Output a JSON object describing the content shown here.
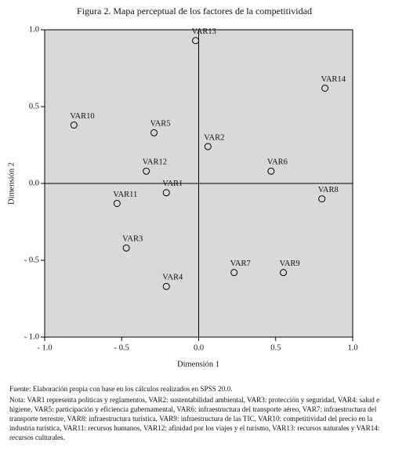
{
  "chart_data": {
    "type": "scatter",
    "title": "Figura 2. Mapa perceptual de los factores de la competitividad",
    "xlabel": "Dimensión 1",
    "ylabel": "Dimensión 2",
    "labels": [
      "VAR13",
      "VAR14",
      "VAR10",
      "VAR5",
      "VAR2",
      "VAR6",
      "VAR12",
      "VAR1",
      "VAR8",
      "VAR11",
      "VAR3",
      "VAR7",
      "VAR9",
      "VAR4"
    ],
    "x": [
      -0.02,
      0.82,
      -0.81,
      -0.29,
      0.06,
      0.47,
      -0.34,
      -0.21,
      0.8,
      -0.53,
      -0.47,
      0.23,
      0.55,
      -0.21
    ],
    "y": [
      0.93,
      0.62,
      0.38,
      0.33,
      0.24,
      0.08,
      0.08,
      -0.06,
      -0.1,
      -0.13,
      -0.42,
      -0.58,
      -0.58,
      -0.67
    ],
    "xlim": [
      -1.0,
      1.0
    ],
    "ylim": [
      -1.0,
      1.0
    ],
    "xticks": [
      {
        "value": -1.0,
        "label": "- 1.0"
      },
      {
        "value": -0.5,
        "label": "- 0.5"
      },
      {
        "value": 0.0,
        "label": "0.0"
      },
      {
        "value": 0.5,
        "label": "0.5"
      },
      {
        "value": 1.0,
        "label": "1.0"
      }
    ],
    "yticks": [
      {
        "value": -1.0,
        "label": "- 1.0"
      },
      {
        "value": -0.5,
        "label": "- 0.5"
      },
      {
        "value": 0.0,
        "label": "0.0"
      },
      {
        "value": 0.5,
        "label": "0.5"
      },
      {
        "value": 1.0,
        "label": "1.0"
      }
    ],
    "color": "#000000",
    "background": "#d9d9d9"
  },
  "source": "Fuente: Elaboración propia con base en los cálculos realizados en SPSS 20.0.",
  "note": "Nota: VAR1 representa políticas y reglamentos, VAR2: sustentabilidad ambiental, VAR3: protección y seguridad, VAR4: salud e higiene, VAR5: participación y eficiencia gubernamental, VAR6: infraestructura del transporte aéreo, VAR7: infraestructura del transporte terrestre, VAR8: infraestructura turística, VAR9: infraestructura de las TIC, VAR10: competitividad del precio en la industria turística, VAR11: recursos humanos, VAR12: afinidad por los viajes y el turismo, VAR13: recursos naturales y VAR14: recursos culturales."
}
